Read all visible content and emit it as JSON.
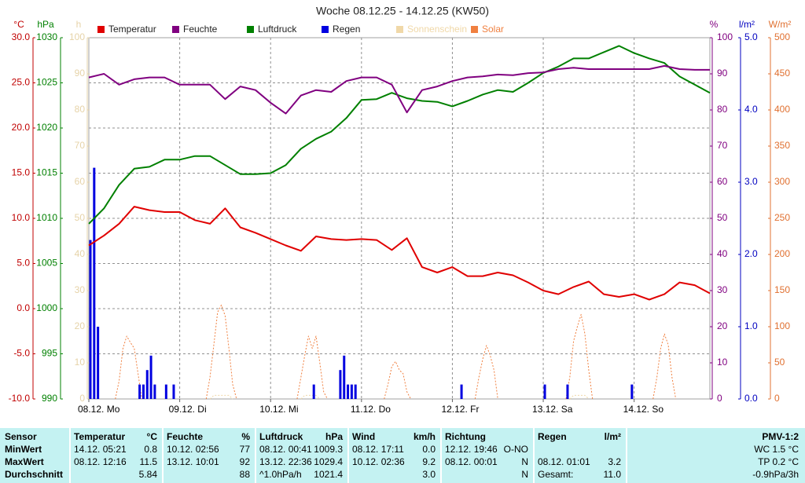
{
  "chart_data": {
    "type": "line",
    "title": "Woche 08.12.25 - 14.12.25 (KW50)",
    "xlim": [
      0,
      164
    ],
    "xticks": [
      {
        "value": 0,
        "label": "08.12. Mo"
      },
      {
        "value": 24,
        "label": "09.12. Di"
      },
      {
        "value": 48,
        "label": "10.12. Mi"
      },
      {
        "value": 72,
        "label": "11.12. Do"
      },
      {
        "value": 96,
        "label": "12.12. Fr"
      },
      {
        "value": 120,
        "label": "13.12. Sa"
      },
      {
        "value": 144,
        "label": "14.12. So"
      }
    ],
    "grid": true,
    "axes": {
      "temp": {
        "unit": "°C",
        "color": "#c00000",
        "lim": [
          -10,
          30
        ],
        "ticks": [
          {
            "value": 30,
            "label": "30.0"
          },
          {
            "value": 25,
            "label": "25.0"
          },
          {
            "value": 20,
            "label": "20.0"
          },
          {
            "value": 15,
            "label": "15.0"
          },
          {
            "value": 10,
            "label": "10.0"
          },
          {
            "value": 5,
            "label": "5.0"
          },
          {
            "value": 0,
            "label": "0.0"
          },
          {
            "value": -5,
            "label": "-5.0"
          },
          {
            "value": -10,
            "label": "-10.0"
          }
        ]
      },
      "press": {
        "unit": "hPa",
        "color": "#008000",
        "lim": [
          990,
          1030
        ],
        "ticks": [
          1030,
          1025,
          1020,
          1015,
          1010,
          1005,
          1000,
          995,
          990
        ]
      },
      "sun": {
        "unit": "h",
        "color": "#e6d3a8",
        "lim": [
          0,
          100
        ],
        "ticks": [
          100,
          90,
          80,
          70,
          60,
          50,
          40,
          30,
          20,
          10,
          0
        ]
      },
      "hum": {
        "unit": "%",
        "color": "#800080",
        "lim": [
          0,
          100
        ],
        "ticks": [
          100,
          90,
          80,
          70,
          60,
          50,
          40,
          30,
          20,
          10,
          0
        ]
      },
      "rain": {
        "unit": "l/m²",
        "color": "#0000c0",
        "lim": [
          0,
          5
        ],
        "ticks": [
          {
            "value": 5,
            "label": "5.0"
          },
          {
            "value": 4,
            "label": "4.0"
          },
          {
            "value": 3,
            "label": "3.0"
          },
          {
            "value": 2,
            "label": "2.0"
          },
          {
            "value": 1,
            "label": "1.0"
          },
          {
            "value": 0,
            "label": "0.0"
          }
        ]
      },
      "solar": {
        "unit": "W/m²",
        "color": "#e07030",
        "lim": [
          0,
          500
        ],
        "ticks": [
          500,
          450,
          400,
          350,
          300,
          250,
          200,
          150,
          100,
          50,
          0
        ]
      }
    },
    "x": [
      0,
      4,
      8,
      12,
      16,
      20,
      24,
      28,
      32,
      36,
      40,
      44,
      48,
      52,
      56,
      60,
      64,
      68,
      72,
      76,
      80,
      84,
      88,
      92,
      96,
      100,
      104,
      108,
      112,
      116,
      120,
      124,
      128,
      132,
      136,
      140,
      144,
      148,
      152,
      156,
      160,
      164
    ],
    "series": [
      {
        "name": "Temperatur",
        "color": "#e00000",
        "axis": "temp",
        "values": [
          7.0,
          8.1,
          9.4,
          11.3,
          10.9,
          10.7,
          10.7,
          9.8,
          9.4,
          11.1,
          9.0,
          8.4,
          7.7,
          7.0,
          6.4,
          8.0,
          7.7,
          7.6,
          7.7,
          7.6,
          6.5,
          7.8,
          4.6,
          4.0,
          4.6,
          3.6,
          3.6,
          4.0,
          3.7,
          2.9,
          2.0,
          1.6,
          2.4,
          3.0,
          1.6,
          1.3,
          1.6,
          1.0,
          1.6,
          2.9,
          2.6,
          1.7
        ]
      },
      {
        "name": "Feuchte",
        "color": "#800080",
        "axis": "hum",
        "values": [
          89,
          90,
          87,
          88.5,
          89,
          89,
          87,
          87,
          87,
          83,
          86.5,
          85.5,
          82,
          79,
          84,
          85.5,
          85,
          88,
          89,
          89,
          87,
          79.3,
          85.5,
          86.5,
          88,
          89,
          89.3,
          89.8,
          89.6,
          90.2,
          90.4,
          91.3,
          91.7,
          91.3,
          91.3,
          91.3,
          91.3,
          91.3,
          92.2,
          91.3,
          91.1,
          91.1
        ]
      },
      {
        "name": "Luftdruck",
        "color": "#008000",
        "axis": "press",
        "values": [
          1009.4,
          1011.1,
          1013.7,
          1015.5,
          1015.7,
          1016.5,
          1016.5,
          1016.9,
          1016.9,
          1015.9,
          1014.9,
          1014.9,
          1015.0,
          1015.9,
          1017.7,
          1018.8,
          1019.6,
          1021.1,
          1023.1,
          1023.2,
          1023.9,
          1023.3,
          1023.0,
          1022.9,
          1022.4,
          1023.0,
          1023.7,
          1024.2,
          1024.0,
          1025.0,
          1026.1,
          1026.8,
          1027.7,
          1027.7,
          1028.4,
          1029.1,
          1028.3,
          1027.7,
          1027.2,
          1025.7,
          1024.8,
          1023.9
        ]
      },
      {
        "name": "Regen",
        "color": "#0000e0",
        "axis": "rain",
        "type": "bar",
        "x": [
          0,
          1,
          2,
          13,
          14,
          15,
          16,
          17,
          20,
          22,
          59,
          66,
          67,
          68,
          69,
          70,
          98,
          120,
          126,
          143
        ],
        "values": [
          2.2,
          3.2,
          1.0,
          0.2,
          0.2,
          0.4,
          0.6,
          0.2,
          0.2,
          0.2,
          0.2,
          0.4,
          0.6,
          0.2,
          0.2,
          0.2,
          0.2,
          0.2,
          0.2,
          0.2
        ]
      },
      {
        "name": "Sonnenschein",
        "color": "#f0d8a8",
        "axis": "sun",
        "dashed": true,
        "x": [
          32,
          33,
          34,
          35,
          36,
          37,
          38,
          45,
          56,
          57,
          58,
          59,
          60,
          61,
          95,
          127,
          128,
          129,
          130,
          131,
          132
        ],
        "values": [
          0,
          1,
          1,
          1,
          1,
          1,
          0,
          null,
          0,
          1,
          1,
          1,
          1,
          0,
          null,
          0,
          1,
          1,
          1,
          1,
          0
        ]
      },
      {
        "name": "Solar",
        "color": "#f08040",
        "axis": "solar",
        "dashed": true,
        "x": [
          7,
          8,
          9,
          10,
          11,
          12,
          13,
          14,
          20,
          31,
          32,
          33,
          34,
          35,
          36,
          37,
          38,
          39,
          45,
          55,
          56,
          57,
          58,
          59,
          60,
          61,
          62,
          63,
          70,
          78,
          79,
          80,
          81,
          82,
          83,
          84,
          85,
          95,
          102,
          103,
          104,
          105,
          106,
          107,
          108,
          118,
          126,
          127,
          128,
          129,
          130,
          131,
          132,
          133,
          140,
          149,
          150,
          151,
          152,
          153,
          154,
          155
        ],
        "values": [
          0,
          25,
          70,
          87,
          78,
          70,
          35,
          0,
          null,
          0,
          30,
          75,
          120,
          130,
          115,
          70,
          20,
          0,
          null,
          0,
          30,
          60,
          87,
          70,
          87,
          50,
          10,
          0,
          null,
          0,
          20,
          45,
          52,
          40,
          35,
          10,
          0,
          null,
          0,
          30,
          55,
          74,
          60,
          40,
          0,
          null,
          0,
          30,
          80,
          100,
          117,
          90,
          40,
          0,
          null,
          0,
          30,
          70,
          90,
          75,
          30,
          0
        ]
      }
    ]
  },
  "stats_table": {
    "sensor_title": "Sensor",
    "row_labels": [
      "MinWert",
      "MaxWert",
      "Durchschnitt"
    ],
    "groups": [
      {
        "title": "Temperatur",
        "unit": "°C",
        "rows": [
          [
            "14.12. 05:21",
            "0.8"
          ],
          [
            "08.12. 12:16",
            "11.5"
          ],
          [
            null,
            "5.84"
          ]
        ]
      },
      {
        "title": "Feuchte",
        "unit": "%",
        "rows": [
          [
            "10.12. 02:56",
            "77"
          ],
          [
            "13.12. 10:01",
            "92"
          ],
          [
            null,
            "88"
          ]
        ]
      },
      {
        "title": "Luftdruck",
        "unit": "hPa",
        "rows": [
          [
            "08.12. 00:41",
            "1009.3"
          ],
          [
            "13.12. 22:36",
            "1029.4"
          ],
          [
            "^1.0hPa/h",
            "1021.4"
          ]
        ]
      },
      {
        "title": "Wind",
        "unit": "km/h",
        "rows": [
          [
            "08.12. 17:11",
            "0.0"
          ],
          [
            "10.12. 02:36",
            "9.2"
          ],
          [
            null,
            "3.0"
          ]
        ]
      },
      {
        "title": "Richtung",
        "rows": [
          [
            "12.12. 19:46",
            "O-NO"
          ],
          [
            "08.12. 00:01",
            "N"
          ],
          [
            null,
            "N"
          ]
        ]
      },
      {
        "title": "Regen",
        "unit": "l/m²",
        "rows": [
          [
            null,
            null
          ],
          [
            "08.12. 01:01",
            "3.2"
          ],
          [
            "Gesamt:",
            "11.0"
          ]
        ]
      }
    ],
    "pmv": {
      "title": "PMV-1:2",
      "lines": [
        "WC 1.5 °C",
        "TP 0.2 °C",
        "-0.9hPa/3h"
      ]
    }
  }
}
